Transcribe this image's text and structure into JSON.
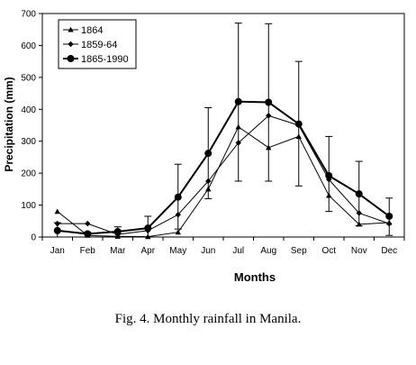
{
  "caption": "Fig. 4. Monthly rainfall in Manila.",
  "chart_data": {
    "type": "line",
    "title": "",
    "xlabel": "Months",
    "ylabel": "Precipitation (mm)",
    "ylim": [
      0,
      700
    ],
    "yticks": [
      0,
      100,
      200,
      300,
      400,
      500,
      600,
      700
    ],
    "grid": false,
    "legend_position": "top-left",
    "categories": [
      "Jan",
      "Feb",
      "Mar",
      "Apr",
      "May",
      "Jun",
      "Jul",
      "Aug",
      "Sep",
      "Oct",
      "Nov",
      "Dec"
    ],
    "series": [
      {
        "name": "1864",
        "marker": "triangle",
        "values": [
          80,
          5,
          2,
          1,
          15,
          150,
          345,
          280,
          315,
          130,
          40,
          45
        ]
      },
      {
        "name": "1859-64",
        "marker": "diamond",
        "values": [
          42,
          42,
          8,
          20,
          70,
          175,
          295,
          380,
          350,
          180,
          75,
          42
        ]
      },
      {
        "name": "1865-1990",
        "marker": "circle",
        "values": [
          20,
          10,
          17,
          28,
          125,
          262,
          424,
          422,
          354,
          192,
          135,
          65
        ],
        "error_low": [
          0,
          0,
          0,
          0,
          25,
          120,
          175,
          175,
          160,
          80,
          35,
          5
        ],
        "error_high": [
          45,
          15,
          32,
          65,
          228,
          405,
          670,
          668,
          550,
          315,
          237,
          122
        ]
      }
    ]
  }
}
